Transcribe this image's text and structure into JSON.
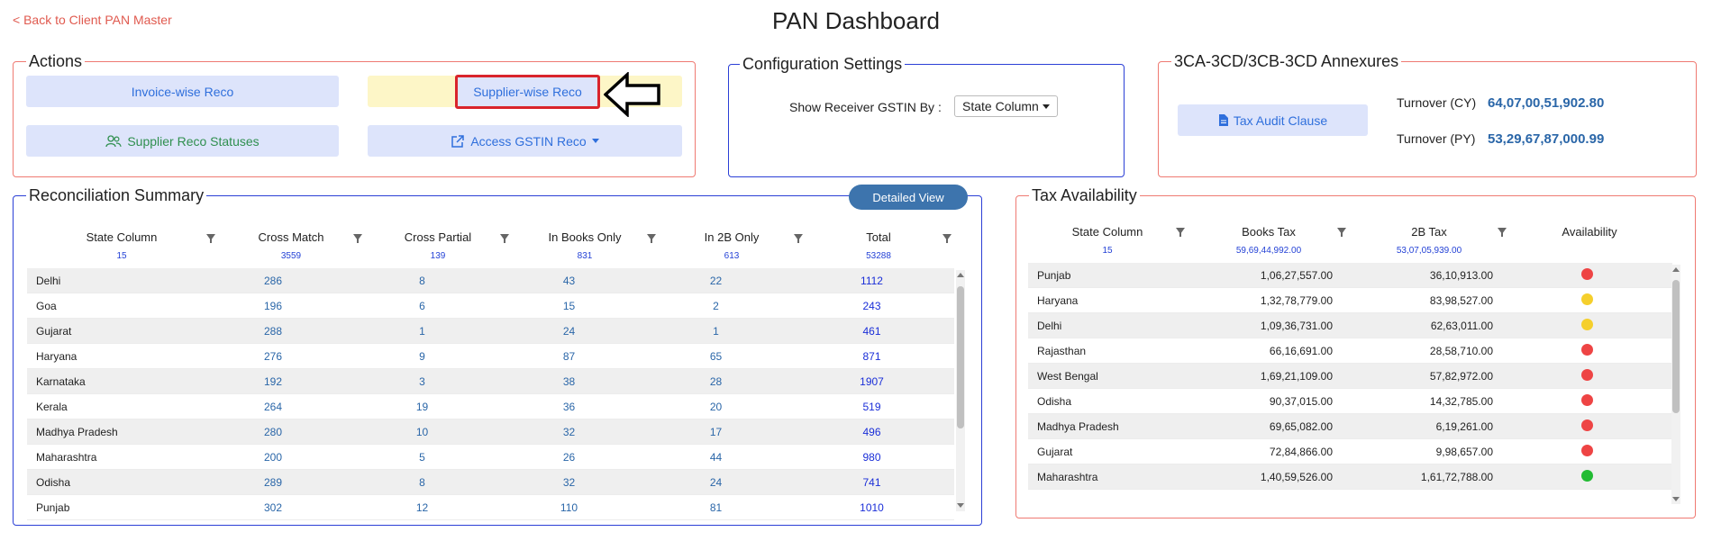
{
  "header": {
    "back_link": "< Back to Client PAN Master",
    "title": "PAN Dashboard"
  },
  "actions": {
    "legend": "Actions",
    "invoice_wise": "Invoice-wise Reco",
    "supplier_wise": "Supplier-wise Reco",
    "supplier_statuses": "Supplier Reco Statuses",
    "access_gstin": "Access GSTIN Reco"
  },
  "config": {
    "legend": "Configuration Settings",
    "label": "Show Receiver GSTIN By :",
    "dropdown_value": "State Column"
  },
  "annexures": {
    "legend": "3CA-3CD/3CB-3CD Annexures",
    "tax_audit_button": "Tax Audit Clause",
    "turnover_cy_label": "Turnover (CY)",
    "turnover_cy_value": "64,07,00,51,902.80",
    "turnover_py_label": "Turnover (PY)",
    "turnover_py_value": "53,29,67,87,000.99"
  },
  "recon": {
    "legend": "Reconciliation Summary",
    "detailed_view": "Detailed View",
    "columns": [
      {
        "label": "State Column",
        "count": "15"
      },
      {
        "label": "Cross Match",
        "count": "3559"
      },
      {
        "label": "Cross Partial",
        "count": "139"
      },
      {
        "label": "In Books Only",
        "count": "831"
      },
      {
        "label": "In 2B Only",
        "count": "613"
      },
      {
        "label": "Total",
        "count": "53288"
      }
    ],
    "rows": [
      [
        "Delhi",
        "286",
        "8",
        "43",
        "22",
        "1112"
      ],
      [
        "Goa",
        "196",
        "6",
        "15",
        "2",
        "243"
      ],
      [
        "Gujarat",
        "288",
        "1",
        "24",
        "1",
        "461"
      ],
      [
        "Haryana",
        "276",
        "9",
        "87",
        "65",
        "871"
      ],
      [
        "Karnataka",
        "192",
        "3",
        "38",
        "28",
        "1907"
      ],
      [
        "Kerala",
        "264",
        "19",
        "36",
        "20",
        "519"
      ],
      [
        "Madhya Pradesh",
        "280",
        "10",
        "32",
        "17",
        "496"
      ],
      [
        "Maharashtra",
        "200",
        "5",
        "26",
        "44",
        "980"
      ],
      [
        "Odisha",
        "289",
        "8",
        "32",
        "24",
        "741"
      ],
      [
        "Punjab",
        "302",
        "12",
        "110",
        "81",
        "1010"
      ]
    ]
  },
  "tax": {
    "legend": "Tax Availability",
    "columns": [
      {
        "label": "State Column",
        "count": "15"
      },
      {
        "label": "Books Tax",
        "count": "59,69,44,992.00"
      },
      {
        "label": "2B Tax",
        "count": "53,07,05,939.00"
      },
      {
        "label": "Availability",
        "count": ""
      }
    ],
    "rows": [
      [
        "Punjab",
        "1,06,27,557.00",
        "36,10,913.00",
        "red"
      ],
      [
        "Haryana",
        "1,32,78,779.00",
        "83,98,527.00",
        "yellow"
      ],
      [
        "Delhi",
        "1,09,36,731.00",
        "62,63,011.00",
        "yellow"
      ],
      [
        "Rajasthan",
        "66,16,691.00",
        "28,58,710.00",
        "red"
      ],
      [
        "West Bengal",
        "1,69,21,109.00",
        "57,82,972.00",
        "red"
      ],
      [
        "Odisha",
        "90,37,015.00",
        "14,32,785.00",
        "red"
      ],
      [
        "Madhya Pradesh",
        "69,65,082.00",
        "6,19,261.00",
        "red"
      ],
      [
        "Gujarat",
        "72,84,866.00",
        "9,98,657.00",
        "red"
      ],
      [
        "Maharashtra",
        "1,40,59,526.00",
        "1,61,72,788.00",
        "green"
      ]
    ],
    "status_colors": {
      "red": "#ee4444",
      "yellow": "#f5cf2c",
      "green": "#22bb33"
    }
  }
}
